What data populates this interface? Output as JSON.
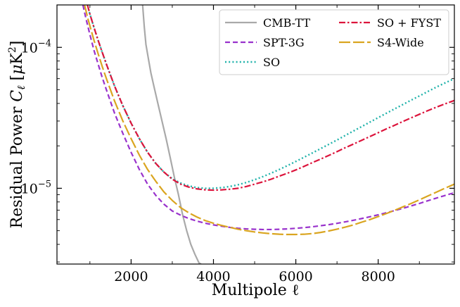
{
  "chart_data": {
    "type": "line",
    "title": "",
    "xlabel": "Multipole  ℓ",
    "ylabel": "Residual Power  C_ℓ [μK²]",
    "ylabel_parts": {
      "prefix": "Residual Power  ",
      "C": "C",
      "ell": "ℓ",
      "unit_open": " [",
      "mu": "μ",
      "K": "K",
      "sq": "2",
      "unit_close": "]"
    },
    "xlim": [
      200,
      9850
    ],
    "ylim": [
      2.9e-06,
      0.0002
    ],
    "yscale": "log",
    "xticks": [
      2000,
      4000,
      6000,
      8000
    ],
    "xtick_labels": [
      "2000",
      "4000",
      "6000",
      "8000"
    ],
    "yticks": [
      1e-05,
      0.0001
    ],
    "ytick_labels": [
      {
        "base": "10",
        "exp": "−5"
      },
      {
        "base": "10",
        "exp": "−4"
      }
    ],
    "legend_position": "top-right",
    "grid": false,
    "series": [
      {
        "name": "CMB-TT",
        "color": "#a9a9a9",
        "style": "solid",
        "x": [
          2280,
          2320,
          2360,
          2420,
          2480,
          2560,
          2650,
          2750,
          2850,
          2950,
          3050,
          3150,
          3250,
          3350,
          3450,
          3550,
          3650,
          3700
        ],
        "y": [
          0.0002,
          0.00014,
          0.000105,
          8.3e-05,
          6.6e-05,
          5.2e-05,
          4e-05,
          3e-05,
          2.25e-05,
          1.65e-05,
          1.2e-05,
          9e-06,
          6.5e-06,
          5e-06,
          4e-06,
          3.4e-06,
          2.95e-06,
          2.9e-06
        ]
      },
      {
        "name": "SPT-3G",
        "color": "#9932cc",
        "style": "dashed",
        "x": [
          830,
          900,
          1000,
          1100,
          1200,
          1300,
          1400,
          1600,
          1800,
          2000,
          2200,
          2400,
          2600,
          2800,
          3000,
          3200,
          3400,
          3600,
          3800,
          4000,
          4200,
          4400,
          4600,
          4800,
          5000,
          5200,
          5400,
          5600,
          5800,
          6000,
          6200,
          6400,
          6600,
          6800,
          7000,
          7200,
          7400,
          7600,
          7800,
          8000,
          8200,
          8400,
          8600,
          8800,
          9000,
          9200,
          9400,
          9600,
          9850
        ],
        "y": [
          0.0002,
          0.000162,
          0.000123,
          9.5e-05,
          7.6e-05,
          6.1e-05,
          5e-05,
          3.4e-05,
          2.45e-05,
          1.8e-05,
          1.36e-05,
          1.07e-05,
          8.9e-06,
          7.7e-06,
          6.9e-06,
          6.45e-06,
          6.1e-06,
          5.85e-06,
          5.65e-06,
          5.5e-06,
          5.38e-06,
          5.28e-06,
          5.2e-06,
          5.15e-06,
          5.12e-06,
          5.1e-06,
          5.1e-06,
          5.12e-06,
          5.15e-06,
          5.2e-06,
          5.26e-06,
          5.33e-06,
          5.42e-06,
          5.52e-06,
          5.64e-06,
          5.78e-06,
          5.93e-06,
          6.1e-06,
          6.28e-06,
          6.48e-06,
          6.7e-06,
          6.95e-06,
          7.2e-06,
          7.5e-06,
          7.8e-06,
          8.15e-06,
          8.5e-06,
          8.85e-06,
          9.3e-06
        ]
      },
      {
        "name": "SO",
        "color": "#20b2aa",
        "style": "dotted",
        "x": [
          940,
          1000,
          1100,
          1200,
          1300,
          1400,
          1600,
          1800,
          2000,
          2200,
          2400,
          2600,
          2800,
          3000,
          3200,
          3400,
          3600,
          3800,
          4000,
          4200,
          4400,
          4600,
          4800,
          5000,
          5200,
          5400,
          5600,
          5800,
          6000,
          6200,
          6400,
          6600,
          6800,
          7000,
          7200,
          7400,
          7600,
          7800,
          8000,
          8200,
          8400,
          8600,
          8800,
          9000,
          9200,
          9400,
          9600,
          9850
        ],
        "y": [
          0.0002,
          0.000172,
          0.000138,
          0.000112,
          9.2e-05,
          7.6e-05,
          5.3e-05,
          3.85e-05,
          2.9e-05,
          2.25e-05,
          1.8e-05,
          1.5e-05,
          1.3e-05,
          1.17e-05,
          1.09e-05,
          1.04e-05,
          1.01e-05,
          1e-05,
          1e-05,
          1.01e-05,
          1.03e-05,
          1.06e-05,
          1.1e-05,
          1.15e-05,
          1.21e-05,
          1.28e-05,
          1.36e-05,
          1.45e-05,
          1.55e-05,
          1.66e-05,
          1.78e-05,
          1.91e-05,
          2.05e-05,
          2.2e-05,
          2.37e-05,
          2.55e-05,
          2.74e-05,
          2.95e-05,
          3.17e-05,
          3.41e-05,
          3.66e-05,
          3.93e-05,
          4.22e-05,
          4.52e-05,
          4.85e-05,
          5.2e-05,
          5.55e-05,
          6e-05
        ]
      },
      {
        "name": "SO + FYST",
        "color": "#dc143c",
        "style": "dashdot",
        "x": [
          940,
          1000,
          1100,
          1200,
          1300,
          1400,
          1600,
          1800,
          2000,
          2200,
          2400,
          2600,
          2800,
          3000,
          3200,
          3400,
          3600,
          3800,
          4000,
          4200,
          4400,
          4600,
          4800,
          5000,
          5200,
          5400,
          5600,
          5800,
          6000,
          6200,
          6400,
          6600,
          6800,
          7000,
          7200,
          7400,
          7600,
          7800,
          8000,
          8200,
          8400,
          8600,
          8800,
          9000,
          9200,
          9400,
          9600,
          9850
        ],
        "y": [
          0.0002,
          0.000172,
          0.000138,
          0.000112,
          9.2e-05,
          7.6e-05,
          5.3e-05,
          3.85e-05,
          2.9e-05,
          2.25e-05,
          1.8e-05,
          1.5e-05,
          1.3e-05,
          1.16e-05,
          1.07e-05,
          1.02e-05,
          9.9e-06,
          9.75e-06,
          9.7e-06,
          9.75e-06,
          9.85e-06,
          1e-05,
          1.03e-05,
          1.07e-05,
          1.11e-05,
          1.16e-05,
          1.22e-05,
          1.28e-05,
          1.35e-05,
          1.43e-05,
          1.52e-05,
          1.61e-05,
          1.71e-05,
          1.82e-05,
          1.94e-05,
          2.06e-05,
          2.19e-05,
          2.33e-05,
          2.48e-05,
          2.64e-05,
          2.8e-05,
          2.98e-05,
          3.16e-05,
          3.35e-05,
          3.55e-05,
          3.75e-05,
          3.95e-05,
          4.2e-05
        ]
      },
      {
        "name": "S4-Wide",
        "color": "#daa520",
        "style": "longdash",
        "x": [
          870,
          950,
          1000,
          1100,
          1200,
          1300,
          1400,
          1600,
          1800,
          2000,
          2200,
          2400,
          2600,
          2800,
          3000,
          3200,
          3400,
          3600,
          3800,
          4000,
          4200,
          4400,
          4600,
          4800,
          5000,
          5200,
          5400,
          5600,
          5800,
          6000,
          6200,
          6400,
          6600,
          6800,
          7000,
          7200,
          7400,
          7600,
          7800,
          8000,
          8200,
          8400,
          8600,
          8800,
          9000,
          9200,
          9400,
          9600,
          9850
        ],
        "y": [
          0.0002,
          0.00016,
          0.000142,
          0.000112,
          9e-05,
          7.3e-05,
          6e-05,
          4.15e-05,
          3e-05,
          2.25e-05,
          1.72e-05,
          1.36e-05,
          1.12e-05,
          9.4e-06,
          8.2e-06,
          7.3e-06,
          6.7e-06,
          6.25e-06,
          5.9e-06,
          5.65e-06,
          5.45e-06,
          5.28e-06,
          5.12e-06,
          5e-06,
          4.9e-06,
          4.82e-06,
          4.76e-06,
          4.72e-06,
          4.7e-06,
          4.7e-06,
          4.72e-06,
          4.77e-06,
          4.86e-06,
          4.98e-06,
          5.13e-06,
          5.3e-06,
          5.5e-06,
          5.75e-06,
          6e-06,
          6.3e-06,
          6.62e-06,
          6.98e-06,
          7.38e-06,
          7.8e-06,
          8.28e-06,
          8.8e-06,
          9.35e-06,
          9.95e-06,
          1.07e-05
        ]
      }
    ]
  }
}
